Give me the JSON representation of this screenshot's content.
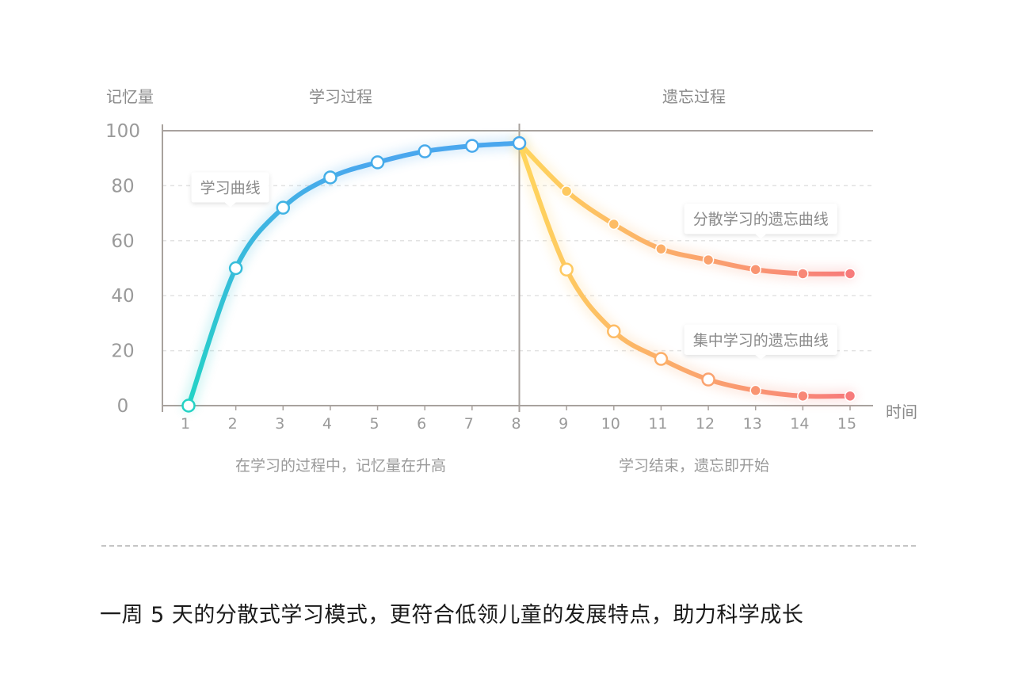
{
  "header": {
    "learning_section": "学习过程",
    "forgetting_section": "遗忘过程"
  },
  "footer": {
    "learning_caption": "在学习的过程中，记忆量在升高",
    "forgetting_caption": "学习结束，遗忘即开始",
    "slogan": "一周 5 天的分散式学习模式，更符合低领儿童的发展特点，助力科学成长"
  },
  "colors": {
    "learning_start": "#22d3c5",
    "learning_end": "#4aa7ee",
    "forget_start": "#ffd65c",
    "forget_end": "#f77b7b",
    "axis": "#a8a29e",
    "grid": "#e2e2e2"
  },
  "chart_data": {
    "type": "line",
    "ylabel": "记忆量",
    "xlabel": "时间",
    "ylim": [
      0,
      100
    ],
    "xlim": [
      1,
      15
    ],
    "yticks": [
      0,
      20,
      40,
      60,
      80,
      100
    ],
    "xticks": [
      1,
      2,
      3,
      4,
      5,
      6,
      7,
      8,
      9,
      10,
      11,
      12,
      13,
      14,
      15
    ],
    "grid": "horizontal dashed",
    "series": [
      {
        "name": "学习曲线",
        "x": [
          1,
          2,
          3,
          4,
          5,
          6,
          7,
          8
        ],
        "values": [
          0,
          50,
          72,
          83,
          88.5,
          92.5,
          94.5,
          95.5
        ]
      },
      {
        "name": "分散学习的遗忘曲线",
        "x": [
          8,
          9,
          10,
          11,
          12,
          13,
          14,
          15
        ],
        "values": [
          95.5,
          78,
          66,
          57,
          53,
          49.5,
          48,
          48
        ]
      },
      {
        "name": "集中学习的遗忘曲线",
        "x": [
          8,
          9,
          10,
          11,
          12,
          13,
          14,
          15
        ],
        "values": [
          95.5,
          49.5,
          27,
          17,
          9.5,
          5.5,
          3.5,
          3.5
        ]
      }
    ]
  }
}
